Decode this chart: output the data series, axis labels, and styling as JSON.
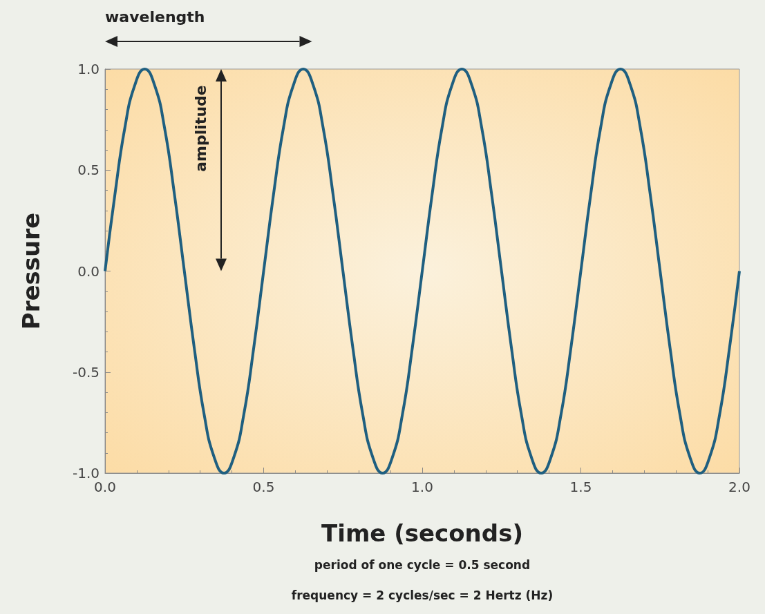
{
  "chart_data": {
    "type": "line",
    "xlabel": "Time (seconds)",
    "ylabel": "Pressure",
    "annotations": [
      "wavelength",
      "amplitude",
      "period of one cycle = 0.5 second",
      "frequency = 2 cycles/sec = 2 Hertz (Hz)"
    ],
    "xlim": [
      0,
      2
    ],
    "ylim": [
      -1,
      1
    ],
    "xticks": [
      {
        "value": 0,
        "label": "0.0"
      },
      {
        "value": 0.5,
        "label": "0.5"
      },
      {
        "value": 1,
        "label": "1.0"
      },
      {
        "value": 1.5,
        "label": "1.5"
      },
      {
        "value": 2,
        "label": "2.0"
      }
    ],
    "yticks": [
      {
        "value": -1,
        "label": "-1.0"
      },
      {
        "value": -0.5,
        "label": "-0.5"
      },
      {
        "value": 0,
        "label": "0.0"
      },
      {
        "value": 0.5,
        "label": "0.5"
      },
      {
        "value": 1,
        "label": "1.0"
      }
    ],
    "grid": false,
    "marker": "none",
    "line_style": "solid",
    "series": [
      {
        "color": "#1f5f80",
        "x": [
          0,
          0.03125,
          0.0625,
          0.09375,
          0.125,
          0.15625,
          0.1875,
          0.21875,
          0.25,
          0.28125,
          0.3125,
          0.34375,
          0.375,
          0.40625,
          0.4375,
          0.46875,
          0.5,
          0.53125,
          0.5625,
          0.59375,
          0.625,
          0.65625,
          0.6875,
          0.71875,
          0.75,
          0.78125,
          0.8125,
          0.84375,
          0.875,
          0.90625,
          0.9375,
          0.96875,
          1,
          1.03125,
          1.0625,
          1.09375,
          1.125,
          1.15625,
          1.1875,
          1.21875,
          1.25,
          1.28125,
          1.3125,
          1.34375,
          1.375,
          1.40625,
          1.4375,
          1.46875,
          1.5,
          1.53125,
          1.5625,
          1.59375,
          1.625,
          1.65625,
          1.6875,
          1.71875,
          1.75,
          1.78125,
          1.8125,
          1.84375,
          1.875,
          1.90625,
          1.9375,
          1.96875,
          2
        ],
        "values": [
          0,
          0.38,
          0.71,
          0.92,
          1,
          0.92,
          0.71,
          0.38,
          0,
          -0.38,
          -0.71,
          -0.92,
          -1,
          -0.92,
          -0.71,
          -0.38,
          0,
          0.38,
          0.71,
          0.92,
          1,
          0.92,
          0.71,
          0.38,
          0,
          -0.38,
          -0.71,
          -0.92,
          -1,
          -0.92,
          -0.71,
          -0.38,
          0,
          0.38,
          0.71,
          0.92,
          1,
          0.92,
          0.71,
          0.38,
          0,
          -0.38,
          -0.71,
          -0.92,
          -1,
          -0.92,
          -0.71,
          -0.38,
          0,
          0.38,
          0.71,
          0.92,
          1,
          0.92,
          0.71,
          0.38,
          0,
          -0.38,
          -0.71,
          -0.92,
          -1,
          -0.92,
          -0.71,
          -0.38,
          0
        ]
      }
    ]
  }
}
